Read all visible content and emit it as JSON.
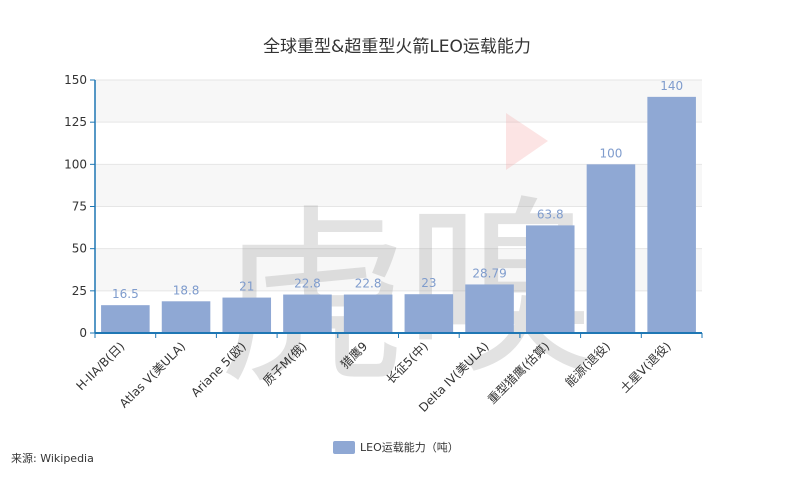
{
  "source": "来源: Wikipedia",
  "colors": {
    "bar": "#8fa8d4",
    "data_label": "#7f9ccd",
    "axis": "#1f77b4",
    "grid": "#e6e6e6",
    "band": "#f7f7f7"
  },
  "chart_data": {
    "type": "bar",
    "title": "全球重型&超重型火箭LEO运载能力",
    "xlabel": "",
    "ylabel": "",
    "ylim": [
      0,
      150
    ],
    "yticks": [
      0,
      25,
      50,
      75,
      100,
      125,
      150
    ],
    "grid": true,
    "legend_position": "bottom-center",
    "categories": [
      "H-IIA/B(日)",
      "Atlas V(美ULA)",
      "Ariane 5(欧)",
      "质子M(俄)",
      "猎鹰9",
      "长征5(中)",
      "Delta IV(美ULA)",
      "重型猎鹰(估算)",
      "能源(退役)",
      "土星V(退役)"
    ],
    "series": [
      {
        "name": "LEO运载能力（吨）",
        "values": [
          16.5,
          18.8,
          21,
          22.8,
          22.8,
          23,
          28.79,
          63.8,
          100,
          140
        ],
        "labels": [
          "16.5",
          "18.8",
          "21",
          "22.8",
          "22.8",
          "23",
          "28.79",
          "63.8",
          "100",
          "140"
        ]
      }
    ]
  }
}
